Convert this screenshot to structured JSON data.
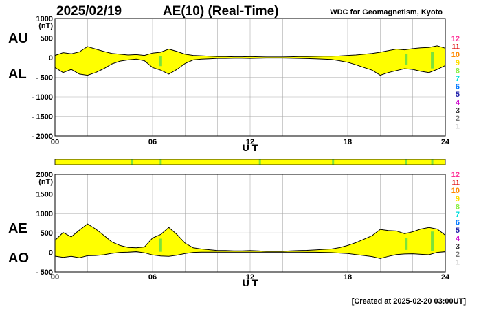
{
  "header": {
    "date": "2025/02/19",
    "title": "AE(10) (Real-Time)",
    "source": "WDC for Geomagnetism, Kyoto"
  },
  "footer": {
    "created": "[Created at 2025-02-20 03:00UT]"
  },
  "colors": {
    "fill": "#ffff00",
    "green": "#7be33a",
    "grid": "#aaaaaa",
    "line": "#000000"
  },
  "station_legend": [
    {
      "label": "12",
      "color": "#ff3399"
    },
    {
      "label": "11",
      "color": "#dd0000"
    },
    {
      "label": "10",
      "color": "#ff8800"
    },
    {
      "label": "9",
      "color": "#ffdd00"
    },
    {
      "label": "8",
      "color": "#88ee44"
    },
    {
      "label": "7",
      "color": "#00dddd"
    },
    {
      "label": "6",
      "color": "#0077ff"
    },
    {
      "label": "5",
      "color": "#2222aa"
    },
    {
      "label": "4",
      "color": "#cc00cc"
    },
    {
      "label": "3",
      "color": "#333333"
    },
    {
      "label": "2",
      "color": "#777777"
    },
    {
      "label": "1",
      "color": "#cccccc"
    }
  ],
  "coverage_bar": {
    "color": "#ffff00",
    "green_marks_ut": [
      4.75,
      6.5,
      12.6,
      17.1,
      21.6,
      23.2
    ]
  },
  "chart_data": [
    {
      "type": "area",
      "series": [
        {
          "name": "AU",
          "x": [
            0,
            0.5,
            1,
            1.5,
            2,
            2.5,
            3,
            3.5,
            4,
            4.5,
            5,
            5.5,
            6,
            6.5,
            7,
            7.5,
            8,
            8.5,
            9,
            9.5,
            10,
            10.5,
            11,
            11.5,
            12,
            12.5,
            13,
            13.5,
            14,
            14.5,
            15,
            15.5,
            16,
            16.5,
            17,
            17.5,
            18,
            18.5,
            19,
            19.5,
            20,
            20.5,
            21,
            21.5,
            22,
            22.5,
            23,
            23.5,
            24
          ],
          "values": [
            60,
            130,
            100,
            150,
            280,
            220,
            160,
            110,
            90,
            70,
            80,
            60,
            120,
            140,
            220,
            160,
            90,
            60,
            50,
            40,
            30,
            30,
            25,
            25,
            30,
            25,
            20,
            20,
            20,
            25,
            30,
            30,
            35,
            40,
            40,
            45,
            60,
            70,
            90,
            110,
            140,
            180,
            220,
            200,
            230,
            250,
            260,
            300,
            240
          ]
        },
        {
          "name": "AL",
          "x": [
            0,
            0.5,
            1,
            1.5,
            2,
            2.5,
            3,
            3.5,
            4,
            4.5,
            5,
            5.5,
            6,
            6.5,
            7,
            7.5,
            8,
            8.5,
            9,
            9.5,
            10,
            10.5,
            11,
            11.5,
            12,
            12.5,
            13,
            13.5,
            14,
            14.5,
            15,
            15.5,
            16,
            16.5,
            17,
            17.5,
            18,
            18.5,
            19,
            19.5,
            20,
            20.5,
            21,
            21.5,
            22,
            22.5,
            23,
            23.5,
            24
          ],
          "values": [
            -250,
            -380,
            -300,
            -420,
            -450,
            -380,
            -280,
            -160,
            -90,
            -60,
            -40,
            -80,
            -250,
            -320,
            -420,
            -300,
            -150,
            -60,
            -40,
            -30,
            -20,
            -20,
            -15,
            -15,
            -20,
            -15,
            -10,
            -10,
            -10,
            -15,
            -20,
            -25,
            -30,
            -40,
            -50,
            -80,
            -120,
            -180,
            -250,
            -320,
            -450,
            -380,
            -330,
            -280,
            -300,
            -350,
            -380,
            -300,
            -200
          ]
        }
      ],
      "ylim": [
        -2000,
        1000
      ],
      "yticks": [
        "1000",
        "500",
        "0",
        "- 500",
        "- 1000",
        "- 1500",
        "- 2000"
      ],
      "yunit": "(nT)",
      "xlim": [
        0,
        24
      ],
      "xticks": [
        "00",
        "06",
        "12",
        "18",
        "24"
      ],
      "xlabel": "U T",
      "side_labels": [
        "AU",
        "AL"
      ],
      "green_marks_ut": [
        6.5,
        21.6,
        23.2
      ],
      "grid": true
    },
    {
      "type": "area",
      "series": [
        {
          "name": "AE",
          "x": [
            0,
            0.5,
            1,
            1.5,
            2,
            2.5,
            3,
            3.5,
            4,
            4.5,
            5,
            5.5,
            6,
            6.5,
            7,
            7.5,
            8,
            8.5,
            9,
            9.5,
            10,
            10.5,
            11,
            11.5,
            12,
            12.5,
            13,
            13.5,
            14,
            14.5,
            15,
            15.5,
            16,
            16.5,
            17,
            17.5,
            18,
            18.5,
            19,
            19.5,
            20,
            20.5,
            21,
            21.5,
            22,
            22.5,
            23,
            23.5,
            24
          ],
          "values": [
            310,
            510,
            400,
            570,
            730,
            600,
            440,
            270,
            180,
            130,
            120,
            140,
            370,
            460,
            640,
            460,
            240,
            120,
            90,
            70,
            50,
            50,
            40,
            40,
            50,
            40,
            30,
            30,
            30,
            40,
            50,
            55,
            65,
            80,
            90,
            125,
            180,
            250,
            340,
            430,
            590,
            560,
            550,
            480,
            530,
            600,
            640,
            600,
            440
          ]
        },
        {
          "name": "AO",
          "x": [
            0,
            0.5,
            1,
            1.5,
            2,
            2.5,
            3,
            3.5,
            4,
            4.5,
            5,
            5.5,
            6,
            6.5,
            7,
            7.5,
            8,
            8.5,
            9,
            9.5,
            10,
            10.5,
            11,
            11.5,
            12,
            12.5,
            13,
            13.5,
            14,
            14.5,
            15,
            15.5,
            16,
            16.5,
            17,
            17.5,
            18,
            18.5,
            19,
            19.5,
            20,
            20.5,
            21,
            21.5,
            22,
            22.5,
            23,
            23.5,
            24
          ],
          "values": [
            -95,
            -125,
            -100,
            -135,
            -85,
            -80,
            -60,
            -25,
            0,
            5,
            20,
            -10,
            -65,
            -90,
            -100,
            -70,
            -30,
            0,
            5,
            5,
            5,
            5,
            5,
            5,
            5,
            5,
            5,
            5,
            5,
            5,
            5,
            3,
            3,
            0,
            -5,
            -18,
            -30,
            -55,
            -80,
            -105,
            -155,
            -100,
            -55,
            -40,
            -35,
            -50,
            -60,
            0,
            20
          ]
        }
      ],
      "ylim": [
        -500,
        2000
      ],
      "yticks": [
        "2000",
        "1500",
        "1000",
        "500",
        "0",
        "- 500"
      ],
      "yunit": "(nT)",
      "xlim": [
        0,
        24
      ],
      "xticks": [
        "00",
        "06",
        "12",
        "18",
        "24"
      ],
      "xlabel": "U T",
      "side_labels": [
        "AE",
        "AO"
      ],
      "green_marks_ut": [
        6.5,
        21.6,
        23.2
      ],
      "grid": true
    }
  ]
}
